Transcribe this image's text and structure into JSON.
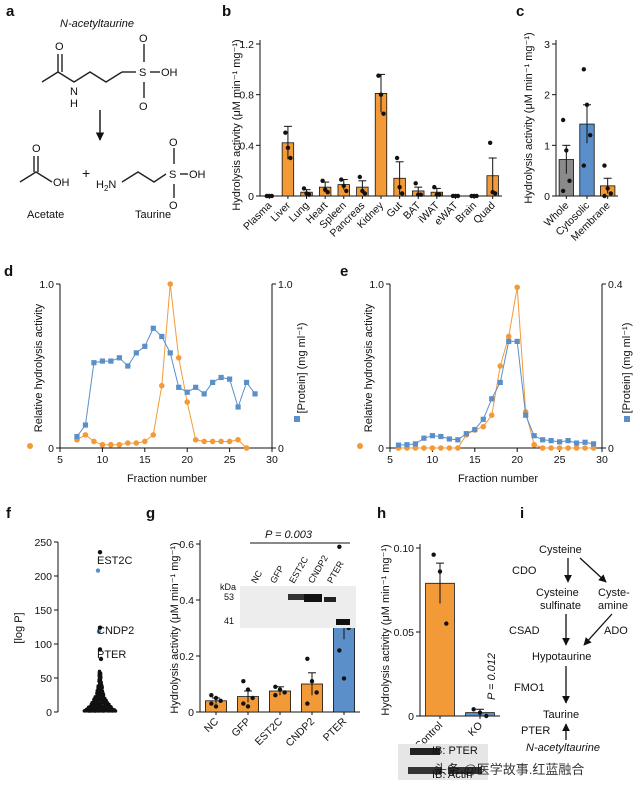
{
  "colors": {
    "orange": "#f39a38",
    "blue": "#5b8fc9",
    "grey": "#8a8a8a",
    "bond": "#222222"
  },
  "panel_a": {
    "letter": "a",
    "title": "N-acetyltaurine",
    "product1": "Acetate",
    "product2": "Taurine",
    "atoms": {
      "n": "N",
      "h": "H",
      "s": "S",
      "o": "O",
      "oh": "OH",
      "h2n": "H",
      "plus": "+"
    }
  },
  "panel_f": {
    "letter": "f",
    "ylabel": "[log P]",
    "ticks": [
      "0",
      "50",
      "100",
      "150",
      "200",
      "250"
    ],
    "labels": [
      "EST2C",
      "CNDP2",
      "PTER"
    ]
  },
  "panel_g": {
    "letter": "g",
    "pval": "P = 0.003",
    "kda": "kDa",
    "mw": [
      "53",
      "41"
    ],
    "lanes": [
      "NC",
      "GFP",
      "EST2C",
      "CNDP2",
      "PTER"
    ]
  },
  "panel_h": {
    "letter": "h",
    "pval": "P = 0.012",
    "ib1": "IB: PTER",
    "ib2": "IB: Actin"
  },
  "panel_i": {
    "letter": "i",
    "nodes": [
      "Cysteine",
      "Cysteine",
      "sulfinate",
      "Cyste-",
      "amine",
      "Hypotaurine",
      "Taurine",
      "N-acetyltaurine"
    ],
    "enzymes": [
      "CDO",
      "CSAD",
      "ADO",
      "FMO1",
      "PTER"
    ]
  },
  "watermark": "头条 @医学故事.红蓝融合",
  "chart_data": [
    {
      "id": "b",
      "type": "bar",
      "letter": "b",
      "ylabel": "Hydrolysis activity (μM min⁻¹ mg⁻¹)",
      "ylim": [
        0,
        1.2
      ],
      "yticks": [
        0,
        0.4,
        0.8,
        1.2
      ],
      "ytick_labels": [
        "0",
        "0.4",
        "0.8",
        "1.2"
      ],
      "categories": [
        "Plasma",
        "Liver",
        "Lung",
        "Heart",
        "Spleen",
        "Pancreas",
        "Kidney",
        "Gut",
        "BAT",
        "iWAT",
        "eWAT",
        "Brain",
        "Quad"
      ],
      "values": [
        0.0,
        0.42,
        0.03,
        0.07,
        0.09,
        0.07,
        0.81,
        0.14,
        0.04,
        0.03,
        0.0,
        0.0,
        0.16
      ],
      "errors": [
        0.0,
        0.13,
        0.02,
        0.04,
        0.04,
        0.05,
        0.15,
        0.13,
        0.03,
        0.03,
        0.0,
        0.0,
        0.14
      ],
      "points": [
        [
          0,
          0,
          0
        ],
        [
          0.5,
          0.38,
          0.3
        ],
        [
          0.06,
          0.02,
          0.01
        ],
        [
          0.12,
          0.05,
          0.03
        ],
        [
          0.13,
          0.08,
          0.04
        ],
        [
          0.15,
          0.04,
          0.02
        ],
        [
          0.95,
          0.8,
          0.65
        ],
        [
          0.3,
          0.07,
          0.02
        ],
        [
          0.1,
          0.01,
          0.01
        ],
        [
          0.07,
          0.01,
          0.01
        ],
        [
          0,
          0,
          0
        ],
        [
          0,
          0,
          0
        ],
        [
          0.42,
          0.03,
          0.02
        ]
      ],
      "color": "#f39a38"
    },
    {
      "id": "c",
      "type": "bar",
      "letter": "c",
      "ylabel": "Hydrolysis activity (μM min⁻¹ mg⁻¹)",
      "ylim": [
        0,
        3
      ],
      "yticks": [
        0,
        1,
        2,
        3
      ],
      "ytick_labels": [
        "0",
        "1",
        "2",
        "3"
      ],
      "categories": [
        "Whole",
        "Cytosolic",
        "Membrane"
      ],
      "values": [
        0.72,
        1.42,
        0.2
      ],
      "errors": [
        0.28,
        0.38,
        0.15
      ],
      "points": [
        [
          1.5,
          0.9,
          0.3,
          0.1
        ],
        [
          2.5,
          1.8,
          1.2,
          0.6
        ],
        [
          0.6,
          0.15,
          0.05,
          0.0
        ]
      ],
      "colors": [
        "#8a8a8a",
        "#5b8fc9",
        "#f39a38"
      ]
    },
    {
      "id": "d",
      "type": "line",
      "letter": "d",
      "xlabel": "Fraction number",
      "ylabel_left": "Relative hydrolysis activity",
      "ylabel_right": "[Protein] (mg ml⁻¹)",
      "xlim": [
        5,
        30
      ],
      "xticks": [
        5,
        10,
        15,
        20,
        25,
        30
      ],
      "ylim_left": [
        0,
        1.0
      ],
      "ylim_right": [
        0,
        1.0
      ],
      "ytick_labels_left": [
        "0",
        "1.0"
      ],
      "ytick_labels_right": [
        "0",
        "1.0"
      ],
      "series": [
        {
          "name": "activity",
          "axis": "left",
          "color": "#f39a38",
          "x": [
            7,
            8,
            9,
            10,
            11,
            12,
            13,
            14,
            15,
            16,
            17,
            18,
            19,
            20,
            21,
            22,
            23,
            24,
            25,
            26,
            27
          ],
          "y": [
            0.05,
            0.08,
            0.04,
            0.02,
            0.02,
            0.02,
            0.03,
            0.03,
            0.04,
            0.08,
            0.38,
            1.0,
            0.55,
            0.28,
            0.05,
            0.04,
            0.04,
            0.04,
            0.04,
            0.05,
            0.0
          ]
        },
        {
          "name": "protein",
          "axis": "right",
          "color": "#5b8fc9",
          "x": [
            7,
            8,
            9,
            10,
            11,
            12,
            13,
            14,
            15,
            16,
            17,
            18,
            19,
            20,
            21,
            22,
            23,
            24,
            25,
            26,
            27,
            28
          ],
          "y": [
            0.07,
            0.14,
            0.52,
            0.53,
            0.53,
            0.55,
            0.5,
            0.58,
            0.62,
            0.73,
            0.68,
            0.58,
            0.37,
            0.34,
            0.37,
            0.33,
            0.4,
            0.43,
            0.42,
            0.25,
            0.4,
            0.33
          ]
        }
      ]
    },
    {
      "id": "e",
      "type": "line",
      "letter": "e",
      "xlabel": "Fraction number",
      "ylabel_left": "Relative hydrolysis activity",
      "ylabel_right": "[Protein] (mg ml⁻¹)",
      "xlim": [
        5,
        30
      ],
      "xticks": [
        5,
        10,
        15,
        20,
        25,
        30
      ],
      "ylim_left": [
        0,
        1.0
      ],
      "ylim_right": [
        0,
        0.4
      ],
      "ytick_labels_left": [
        "0",
        "1.0"
      ],
      "ytick_labels_right": [
        "0",
        "0.4"
      ],
      "series": [
        {
          "name": "activity",
          "axis": "left",
          "color": "#f39a38",
          "x": [
            6,
            7,
            8,
            9,
            10,
            11,
            12,
            13,
            14,
            15,
            16,
            17,
            18,
            19,
            20,
            21,
            22,
            23,
            24,
            25,
            26,
            27,
            28,
            29
          ],
          "y": [
            0,
            0,
            0,
            0,
            0,
            0,
            0,
            0,
            0.08,
            0.11,
            0.13,
            0.2,
            0.5,
            0.68,
            0.98,
            0.22,
            0.02,
            0,
            0,
            0,
            0,
            0,
            0,
            0
          ]
        },
        {
          "name": "protein",
          "axis": "right",
          "color": "#5b8fc9",
          "x": [
            6,
            7,
            8,
            9,
            10,
            11,
            12,
            13,
            14,
            15,
            16,
            17,
            18,
            19,
            20,
            21,
            22,
            23,
            24,
            25,
            26,
            27,
            28,
            29
          ],
          "y": [
            0.007,
            0.008,
            0.01,
            0.024,
            0.03,
            0.028,
            0.022,
            0.02,
            0.035,
            0.045,
            0.07,
            0.12,
            0.16,
            0.26,
            0.26,
            0.08,
            0.03,
            0.02,
            0.018,
            0.015,
            0.018,
            0.012,
            0.014,
            0.01
          ]
        }
      ]
    },
    {
      "id": "g",
      "type": "bar",
      "letter": "g",
      "ylabel": "Hydrolysis activity (μM min⁻¹ mg⁻¹)",
      "ylim": [
        0,
        0.6
      ],
      "yticks": [
        0,
        0.2,
        0.4,
        0.6
      ],
      "ytick_labels": [
        "0",
        "0.2",
        "0.4",
        "0.6"
      ],
      "categories": [
        "NC",
        "GFP",
        "EST2C",
        "CNDP2",
        "PTER"
      ],
      "values": [
        0.04,
        0.055,
        0.075,
        0.1,
        0.32
      ],
      "errors": [
        0.01,
        0.02,
        0.015,
        0.04,
        0.06
      ],
      "points": [
        [
          0.06,
          0.05,
          0.04,
          0.03,
          0.02
        ],
        [
          0.11,
          0.08,
          0.05,
          0.03,
          0.02
        ],
        [
          0.09,
          0.08,
          0.07,
          0.06
        ],
        [
          0.19,
          0.11,
          0.07,
          0.03
        ],
        [
          0.59,
          0.37,
          0.3,
          0.22,
          0.12
        ]
      ],
      "colors": [
        "#f39a38",
        "#f39a38",
        "#f39a38",
        "#f39a38",
        "#5b8fc9"
      ]
    },
    {
      "id": "h",
      "type": "bar",
      "letter": "h",
      "ylabel": "Hydrolysis activity (μM min⁻¹ mg⁻¹)",
      "ylim": [
        0,
        0.1
      ],
      "yticks": [
        0,
        0.05,
        0.1
      ],
      "ytick_labels": [
        "0",
        "0.05",
        "0.10"
      ],
      "categories": [
        "Control",
        "KO"
      ],
      "values": [
        0.079,
        0.002
      ],
      "errors": [
        0.012,
        0.002
      ],
      "points": [
        [
          0.096,
          0.086,
          0.055
        ],
        [
          0.004,
          0.002,
          0.0
        ]
      ],
      "colors": [
        "#f39a38",
        "#5b8fc9"
      ]
    }
  ]
}
